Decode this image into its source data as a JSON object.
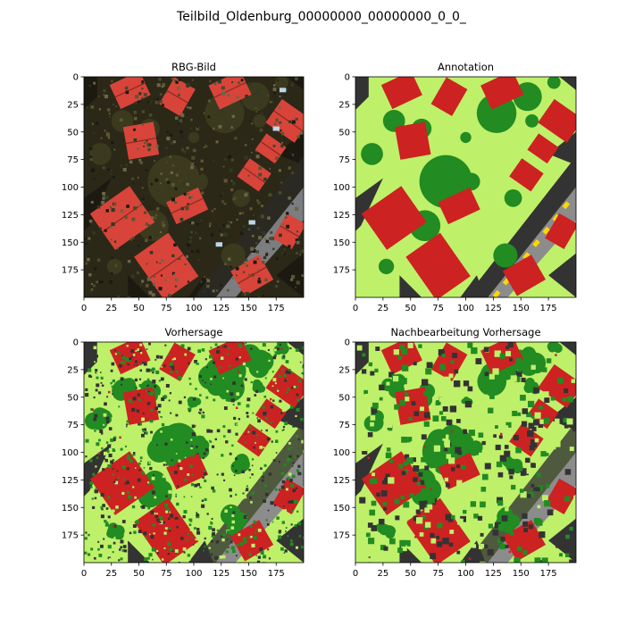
{
  "figure": {
    "title": "Teilbild_Oldenburg_00000000_00000000_0_0_"
  },
  "colors": {
    "background": "#333333",
    "vegetation_low": "#bff06a",
    "tree": "#228b22",
    "building": "#cc2222",
    "road": "#8c8c8c",
    "road_marking": "#ffd700",
    "photo_dark": "#2b2818",
    "photo_tree": "#3b3a1e",
    "photo_roof": "#d8443a",
    "photo_road": "#7b7d80"
  },
  "panels": [
    {
      "id": "rgb",
      "title": "RBG-Bild",
      "style": "photo"
    },
    {
      "id": "annotation",
      "title": "Annotation",
      "style": "annotation"
    },
    {
      "id": "prediction",
      "title": "Vorhersage",
      "style": "prediction"
    },
    {
      "id": "postprocessed",
      "title": "Nachbearbeitung Vorhersage",
      "style": "post"
    }
  ],
  "chart_data": {
    "type": "heatmap",
    "title": "Teilbild_Oldenburg_00000000_00000000_0_0_",
    "grid": "2x2",
    "xlim": [
      0,
      200
    ],
    "ylim": [
      200,
      0
    ],
    "x_ticks": [
      0,
      25,
      50,
      75,
      100,
      125,
      150,
      175
    ],
    "y_ticks": [
      0,
      25,
      50,
      75,
      100,
      125,
      150,
      175
    ],
    "grid_lines": false,
    "panels": [
      "RBG-Bild",
      "Annotation",
      "Vorhersage",
      "Nachbearbeitung Vorhersage"
    ]
  }
}
